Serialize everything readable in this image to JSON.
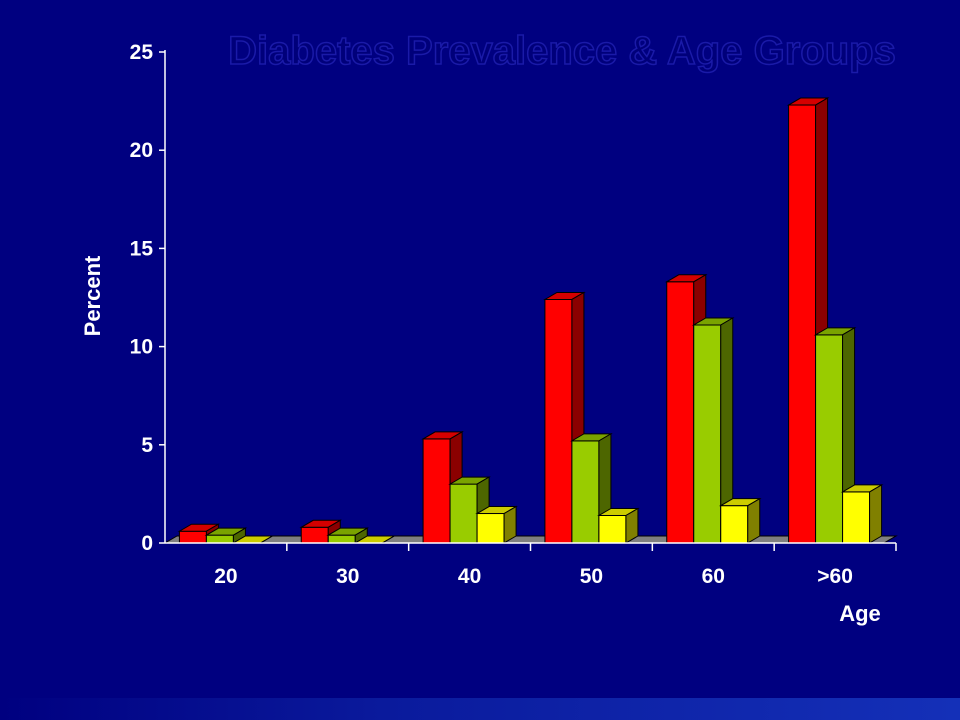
{
  "chart_data": {
    "type": "bar",
    "title": "Diabetes Prevalence & Age Groups",
    "xlabel": "Age",
    "ylabel": "Percent",
    "categories": [
      "20",
      "30",
      "40",
      "50",
      "60",
      ">60"
    ],
    "series": [
      {
        "values": [
          0.6,
          0.8,
          5.3,
          12.4,
          13.3,
          22.3
        ],
        "color": "#ff0000",
        "side_color": "#8b0000",
        "top_color": "#d40000"
      },
      {
        "values": [
          0.4,
          0.4,
          3.0,
          5.2,
          11.1,
          10.6
        ],
        "color": "#99cc00",
        "side_color": "#4d6600",
        "top_color": "#7aa300"
      },
      {
        "values": [
          0.0,
          0.0,
          1.5,
          1.4,
          1.9,
          2.6
        ],
        "color": "#ffff00",
        "side_color": "#808000",
        "top_color": "#cccc00"
      }
    ],
    "yticks": [
      "0",
      "5",
      "10",
      "15",
      "20",
      "25"
    ],
    "ylim": [
      0,
      25
    ],
    "style": "3d-bar",
    "grid": false,
    "legend": "none",
    "background_color": "#000080",
    "axis_color": "#ffffff",
    "floor_color": "#808080"
  }
}
